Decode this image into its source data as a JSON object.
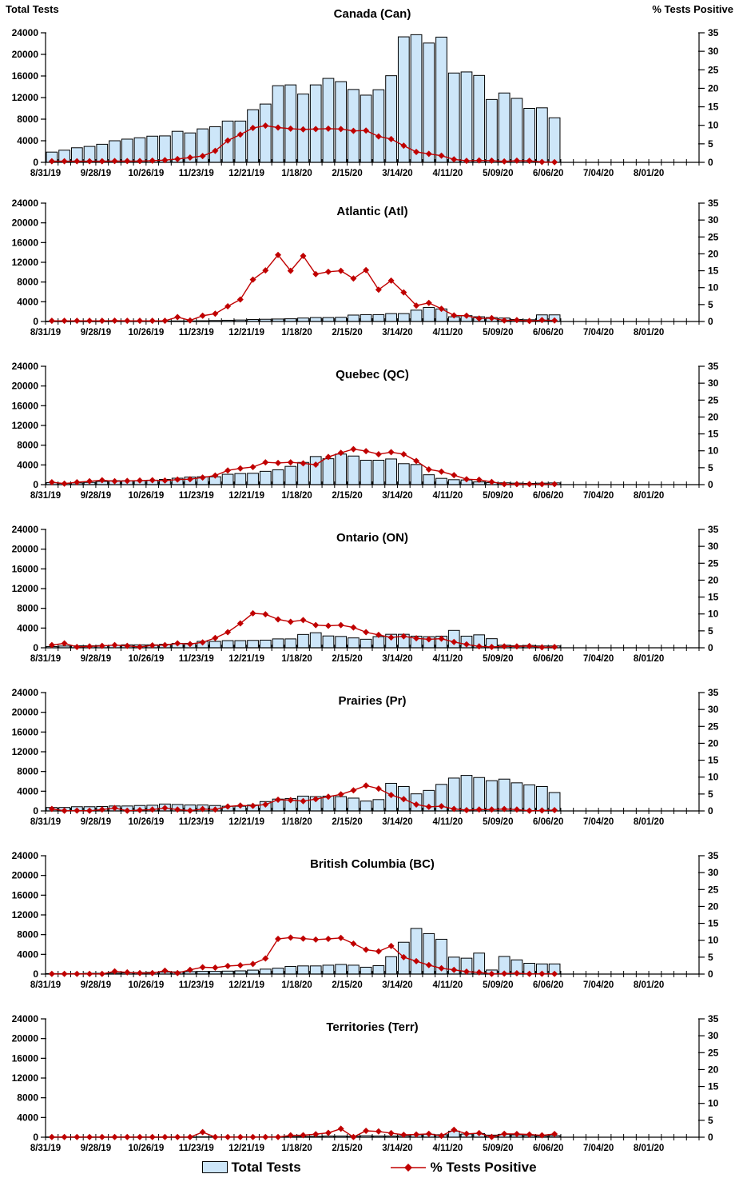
{
  "header": {
    "left_axis_title": "Total Tests",
    "right_axis_title": "% Tests Positive"
  },
  "legend": {
    "bars_label": "Total Tests",
    "line_label": "% Tests Positive"
  },
  "colors": {
    "bar_fill": "#CDE6F9",
    "bar_stroke": "#000000",
    "line": "#C00000",
    "axis": "#000000",
    "text": "#000000"
  },
  "axes": {
    "x_tick_labels": [
      "8/31/19",
      "9/28/19",
      "10/26/19",
      "11/23/19",
      "12/21/19",
      "1/18/20",
      "2/15/20",
      "3/14/20",
      "4/11/20",
      "5/09/20",
      "6/06/20",
      "7/04/20",
      "8/01/20"
    ],
    "weeks_total": 52,
    "label_every_weeks": 4,
    "y_left": {
      "min": 0,
      "max": 24000,
      "step": 4000,
      "ticks": [
        "0",
        "4000",
        "8000",
        "12000",
        "16000",
        "20000",
        "24000"
      ]
    },
    "y_right": {
      "min": 0,
      "max": 35,
      "step": 5,
      "ticks": [
        "0",
        "5",
        "10",
        "15",
        "20",
        "25",
        "30",
        "35"
      ]
    }
  },
  "chart_data": [
    {
      "type": "bar+line",
      "key": "canada",
      "title": "Canada (Can)",
      "bar_series_name": "Total Tests",
      "line_series_name": "% Tests Positive",
      "bars": [
        1900,
        2250,
        2700,
        2950,
        3350,
        4000,
        4300,
        4550,
        4850,
        4900,
        5750,
        5450,
        6200,
        6600,
        7650,
        7650,
        9750,
        10800,
        14200,
        14350,
        12650,
        14350,
        15550,
        14950,
        13500,
        12450,
        13450,
        16050,
        23250,
        23650,
        22100,
        23200,
        16550,
        16750,
        16100,
        11650,
        12850,
        11850,
        10000,
        10100,
        8250
      ],
      "line_pct": [
        0.3,
        0.3,
        0.3,
        0.3,
        0.3,
        0.35,
        0.35,
        0.35,
        0.45,
        0.6,
        0.9,
        1.3,
        1.7,
        3.1,
        5.9,
        7.5,
        9.3,
        9.9,
        9.4,
        9.1,
        8.9,
        9.0,
        9.1,
        9.0,
        8.5,
        8.6,
        7.0,
        6.3,
        4.5,
        2.8,
        2.3,
        1.8,
        0.8,
        0.4,
        0.5,
        0.45,
        0.25,
        0.45,
        0.4,
        0.1,
        0.05
      ]
    },
    {
      "type": "bar+line",
      "key": "atlantic",
      "title": "Atlantic (Atl)",
      "bar_series_name": "Total Tests",
      "line_series_name": "% Tests Positive",
      "bars": [
        60,
        60,
        60,
        60,
        60,
        80,
        80,
        80,
        80,
        100,
        120,
        120,
        150,
        200,
        250,
        300,
        400,
        450,
        500,
        550,
        700,
        800,
        800,
        850,
        1300,
        1390,
        1390,
        1600,
        1600,
        2300,
        2850,
        2550,
        960,
        1180,
        960,
        800,
        700,
        400,
        350,
        1340,
        1340
      ],
      "line_pct": [
        0.2,
        0.2,
        0.2,
        0.2,
        0.2,
        0.25,
        0.2,
        0.2,
        0.2,
        0.2,
        1.3,
        0.3,
        1.7,
        2.3,
        4.5,
        6.5,
        12.4,
        15.1,
        19.7,
        15.0,
        19.4,
        14.0,
        14.7,
        15.0,
        12.7,
        15.2,
        9.4,
        12.1,
        8.6,
        4.7,
        5.5,
        3.75,
        1.8,
        1.7,
        0.9,
        1.0,
        0.3,
        0.4,
        0.15,
        0.4,
        0.3
      ]
    },
    {
      "type": "bar+line",
      "key": "quebec",
      "title": "Quebec (QC)",
      "bar_series_name": "Total Tests",
      "line_series_name": "% Tests Positive",
      "bars": [
        400,
        250,
        350,
        450,
        650,
        800,
        800,
        800,
        900,
        1050,
        1300,
        1550,
        1600,
        1600,
        2100,
        2250,
        2300,
        2700,
        3000,
        3700,
        4500,
        5700,
        5250,
        6200,
        5800,
        4950,
        4950,
        5200,
        4250,
        4080,
        2000,
        1270,
        1000,
        950,
        550,
        420,
        370,
        300,
        250,
        300,
        350
      ],
      "line_pct": [
        0.7,
        0.3,
        0.7,
        1.0,
        1.3,
        1.0,
        1.1,
        1.2,
        1.3,
        1.2,
        1.5,
        1.6,
        2.1,
        2.7,
        4.2,
        4.8,
        5.2,
        6.6,
        6.4,
        6.6,
        6.3,
        5.9,
        8.2,
        9.4,
        10.5,
        9.9,
        9.0,
        9.6,
        9.0,
        7.0,
        4.5,
        3.85,
        2.8,
        1.6,
        1.45,
        0.8,
        0.15,
        0.15,
        0.15,
        0.15,
        0.15
      ]
    },
    {
      "type": "bar+line",
      "key": "ontario",
      "title": "Ontario (ON)",
      "bar_series_name": "Total Tests",
      "line_series_name": "% Tests Positive",
      "bars": [
        250,
        350,
        400,
        400,
        450,
        500,
        600,
        600,
        600,
        700,
        900,
        900,
        1300,
        1300,
        1450,
        1450,
        1500,
        1550,
        1800,
        1800,
        2700,
        3050,
        2400,
        2300,
        2000,
        1730,
        2260,
        2730,
        2730,
        2360,
        2260,
        2360,
        3520,
        2360,
        2620,
        1840,
        520,
        420,
        470,
        370,
        370
      ],
      "line_pct": [
        0.8,
        1.3,
        0.25,
        0.4,
        0.55,
        0.8,
        0.55,
        0.25,
        0.7,
        0.8,
        1.3,
        1.1,
        1.6,
        2.9,
        4.6,
        7.2,
        10.2,
        9.9,
        8.4,
        7.7,
        8.2,
        6.7,
        6.5,
        6.7,
        6.0,
        4.6,
        3.8,
        3.05,
        3.4,
        2.8,
        2.5,
        2.7,
        1.7,
        1.0,
        0.4,
        0.25,
        0.4,
        0.4,
        0.5,
        0.15,
        0.25
      ]
    },
    {
      "type": "bar+line",
      "key": "prairies",
      "title": "Prairies (Pr)",
      "bar_series_name": "Total Tests",
      "line_series_name": "% Tests Positive",
      "bars": [
        700,
        700,
        850,
        850,
        900,
        1000,
        1000,
        1100,
        1150,
        1400,
        1300,
        1200,
        1200,
        1100,
        950,
        950,
        1200,
        1900,
        2400,
        2500,
        3000,
        2900,
        3000,
        2900,
        2600,
        2000,
        2300,
        5600,
        4950,
        3460,
        4160,
        5380,
        6660,
        7200,
        6770,
        6130,
        6450,
        5700,
        5280,
        4950,
        3730
      ],
      "line_pct": [
        0.6,
        0.05,
        0.1,
        0.05,
        0.4,
        0.85,
        0.05,
        0.25,
        0.4,
        0.85,
        0.4,
        0.1,
        0.55,
        0.4,
        1.3,
        1.6,
        1.5,
        1.9,
        3.3,
        3.2,
        2.9,
        3.5,
        4.2,
        4.9,
        6.1,
        7.5,
        6.6,
        4.7,
        3.5,
        1.9,
        1.2,
        1.4,
        0.6,
        0.25,
        0.4,
        0.4,
        0.55,
        0.4,
        0.05,
        0.15,
        0.25
      ]
    },
    {
      "type": "bar+line",
      "key": "british-columbia",
      "title": "British Columbia (BC)",
      "bar_series_name": "Total Tests",
      "line_series_name": "% Tests Positive",
      "bars": [
        100,
        100,
        100,
        150,
        150,
        200,
        250,
        300,
        350,
        400,
        450,
        500,
        550,
        550,
        600,
        650,
        800,
        1000,
        1200,
        1550,
        1650,
        1650,
        1800,
        1950,
        1800,
        1390,
        1700,
        3520,
        6450,
        9250,
        8200,
        7060,
        3430,
        3220,
        4250,
        820,
        3570,
        2880,
        2190,
        2060,
        2060
      ],
      "line_pct": [
        0.05,
        0.05,
        0.05,
        0.05,
        0.05,
        0.8,
        0.5,
        0.3,
        0.3,
        1.0,
        0.3,
        1.25,
        2.0,
        1.9,
        2.4,
        2.6,
        3.0,
        4.6,
        10.4,
        10.8,
        10.5,
        10.2,
        10.4,
        10.7,
        9.0,
        7.2,
        6.7,
        8.3,
        5.0,
        3.8,
        2.65,
        1.7,
        1.25,
        0.7,
        0.5,
        0.05,
        0.15,
        0.25,
        0.05,
        0.1,
        0.05
      ]
    },
    {
      "type": "bar+line",
      "key": "territories",
      "title": "Territories (Terr)",
      "bar_series_name": "Total Tests",
      "line_series_name": "% Tests Positive",
      "bars": [
        50,
        50,
        50,
        50,
        50,
        50,
        50,
        50,
        50,
        50,
        50,
        50,
        80,
        80,
        80,
        80,
        80,
        100,
        100,
        120,
        150,
        180,
        250,
        250,
        200,
        300,
        250,
        250,
        300,
        500,
        600,
        500,
        1230,
        640,
        750,
        430,
        590,
        480,
        370,
        270,
        320
      ],
      "line_pct": [
        0.05,
        0.05,
        0.05,
        0.05,
        0.05,
        0.05,
        0.05,
        0.05,
        0.05,
        0.05,
        0.05,
        0.05,
        1.5,
        0.05,
        0.05,
        0.05,
        0.05,
        0.05,
        0.05,
        0.55,
        0.6,
        0.9,
        1.3,
        2.5,
        0.05,
        1.9,
        1.7,
        1.2,
        0.7,
        0.8,
        1.0,
        0.4,
        2.2,
        1.0,
        1.2,
        0.1,
        1.0,
        0.95,
        0.8,
        0.55,
        0.95
      ]
    }
  ]
}
